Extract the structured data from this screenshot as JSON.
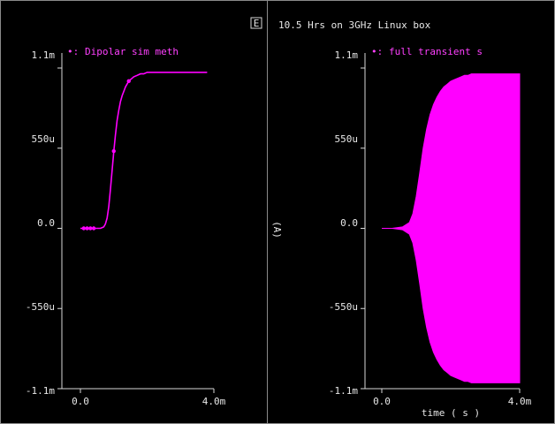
{
  "header": {
    "note": "10.5 Hrs on 3GHz Linux box",
    "corner_glyph": "E"
  },
  "colors": {
    "background": "#000000",
    "trace": "#ff00ff",
    "axis": "#d8d8d8",
    "text": "#e8e8e8"
  },
  "chart_data": [
    {
      "type": "line",
      "title": "",
      "xlabel": "",
      "ylabel": "",
      "legend_marker": "•:",
      "legend_label": "Dipolar sim meth",
      "x_tick_labels": [
        "0.0",
        "4.0m"
      ],
      "y_tick_labels": [
        "1.1m",
        "550u",
        "0.0",
        "-550u",
        "-1.1m"
      ],
      "x_ticks": [
        0,
        0.004
      ],
      "y_ticks": [
        0.0011,
        0.00055,
        0,
        -0.00055,
        -0.0011
      ],
      "xlim": [
        0,
        0.004
      ],
      "ylim": [
        -0.0011,
        0.0011
      ],
      "grid": false,
      "series": [
        {
          "name": "Dipolar sim meth",
          "x": [
            0,
            0.0001,
            0.0002,
            0.0003,
            0.0004,
            0.0005,
            0.0006,
            0.0007,
            0.00075,
            0.0008,
            0.00085,
            0.0009,
            0.00095,
            0.001,
            0.00105,
            0.0011,
            0.00115,
            0.0012,
            0.00125,
            0.0013,
            0.00135,
            0.0014,
            0.00145,
            0.0015,
            0.0016,
            0.0017,
            0.0018,
            0.0019,
            0.002,
            0.0022,
            0.0024,
            0.0026,
            0.0028,
            0.003,
            0.0032,
            0.0034,
            0.0036,
            0.0038
          ],
          "y": [
            0,
            0,
            0,
            0,
            0,
            0,
            0,
            1e-05,
            3e-05,
            7e-05,
            0.00015,
            0.00027,
            0.0004,
            0.00053,
            0.00064,
            0.00074,
            0.00081,
            0.00087,
            0.00091,
            0.00094,
            0.00097,
            0.00099,
            0.00101,
            0.00102,
            0.00104,
            0.00105,
            0.00106,
            0.00106,
            0.00107,
            0.00107,
            0.00107,
            0.00107,
            0.00107,
            0.00107,
            0.00107,
            0.00107,
            0.00107,
            0.00107
          ],
          "markers_x": [
            0.0001,
            0.0002,
            0.0003,
            0.0004,
            0.001,
            0.00145
          ]
        }
      ]
    },
    {
      "type": "area",
      "title": "",
      "xlabel": "time ( s )",
      "ylabel": "(A)",
      "legend_marker": "•:",
      "legend_label": "full transient s",
      "x_tick_labels": [
        "0.0",
        "4.0m"
      ],
      "y_tick_labels": [
        "1.1m",
        "550u",
        "0.0",
        "-550u",
        "-1.1m"
      ],
      "x_ticks": [
        0,
        0.004
      ],
      "y_ticks": [
        0.0011,
        0.00055,
        0,
        -0.00055,
        -0.0011
      ],
      "xlim": [
        0,
        0.004
      ],
      "ylim": [
        -0.0011,
        0.0011
      ],
      "grid": false,
      "series": [
        {
          "name": "full transient s",
          "x": [
            0,
            0.0003,
            0.0006,
            0.0008,
            0.0009,
            0.001,
            0.0011,
            0.0012,
            0.0013,
            0.0014,
            0.0015,
            0.0016,
            0.0017,
            0.0018,
            0.0019,
            0.002,
            0.0021,
            0.0022,
            0.0023,
            0.0024,
            0.0025,
            0.0026,
            0.0028,
            0.003,
            0.0032,
            0.0034,
            0.0036,
            0.0038,
            0.004
          ],
          "envelope": [
            0,
            0,
            1e-05,
            4e-05,
            0.0001,
            0.00022,
            0.00038,
            0.00055,
            0.00068,
            0.00078,
            0.00085,
            0.0009,
            0.00094,
            0.00097,
            0.00099,
            0.00101,
            0.00102,
            0.00103,
            0.00104,
            0.00105,
            0.00105,
            0.00106,
            0.00106,
            0.00106,
            0.00106,
            0.00106,
            0.00106,
            0.00106,
            0.00106
          ]
        }
      ]
    }
  ]
}
